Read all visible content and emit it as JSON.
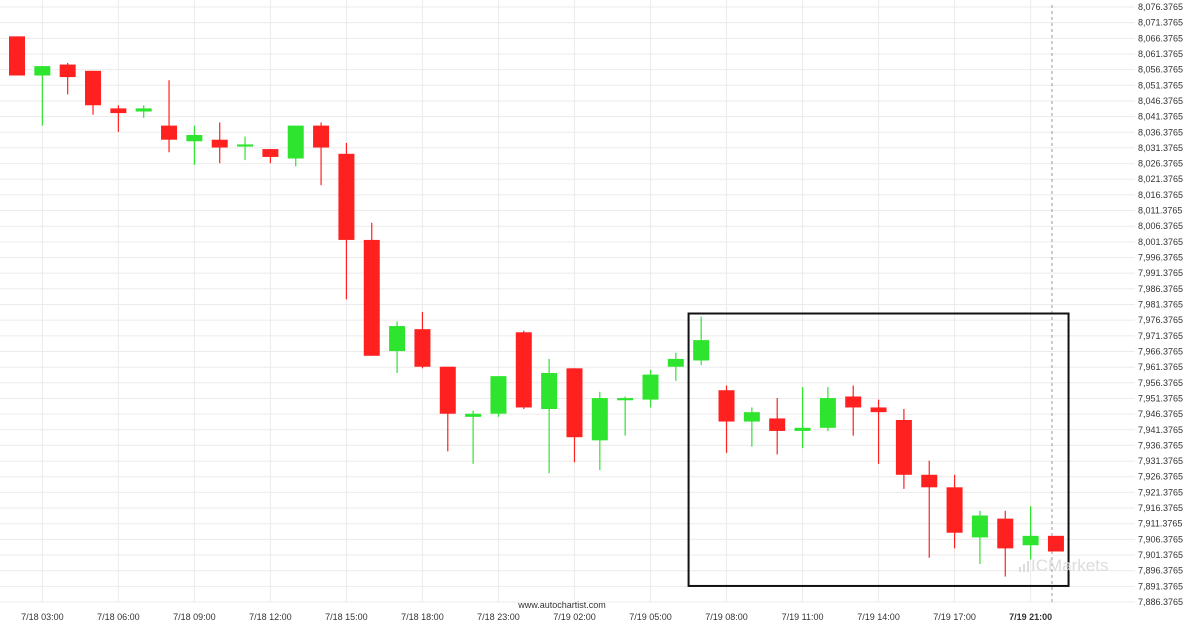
{
  "chart_data": {
    "type": "candlestick",
    "title": "",
    "xlabel": "",
    "ylabel": "",
    "ylim": [
      7884.3765,
      8078.3765
    ],
    "y_ticks": [
      "8,076.3765",
      "8,071.3765",
      "8,066.3765",
      "8,061.3765",
      "8,056.3765",
      "8,051.3765",
      "8,046.3765",
      "8,041.3765",
      "8,036.3765",
      "8,031.3765",
      "8,026.3765",
      "8,021.3765",
      "8,016.3765",
      "8,011.3765",
      "8,006.3765",
      "8,001.3765",
      "7,996.3765",
      "7,991.3765",
      "7,986.3765",
      "7,981.3765",
      "7,976.3765",
      "7,971.3765",
      "7,966.3765",
      "7,961.3765",
      "7,956.3765",
      "7,951.3765",
      "7,946.3765",
      "7,941.3765",
      "7,936.3765",
      "7,931.3765",
      "7,926.3765",
      "7,921.3765",
      "7,916.3765",
      "7,911.3765",
      "7,906.3765",
      "7,901.3765",
      "7,896.3765",
      "7,891.3765",
      "7,886.3765"
    ],
    "x_ticks": [
      {
        "label": "7/18 03:00",
        "candle": 1
      },
      {
        "label": "7/18 06:00",
        "candle": 4
      },
      {
        "label": "7/18 09:00",
        "candle": 7
      },
      {
        "label": "7/18 12:00",
        "candle": 10
      },
      {
        "label": "7/18 15:00",
        "candle": 13
      },
      {
        "label": "7/18 18:00",
        "candle": 16
      },
      {
        "label": "7/18 23:00",
        "candle": 19
      },
      {
        "label": "7/19 02:00",
        "candle": 22
      },
      {
        "label": "7/19 05:00",
        "candle": 25
      },
      {
        "label": "7/19 08:00",
        "candle": 28
      },
      {
        "label": "7/19 11:00",
        "candle": 31
      },
      {
        "label": "7/19 14:00",
        "candle": 34
      },
      {
        "label": "7/19 17:00",
        "candle": 37
      },
      {
        "label": "7/19 21:00",
        "candle": 40,
        "bold": true
      }
    ],
    "candles": [
      {
        "o": 8067.0,
        "h": 8067.0,
        "l": 8054.5,
        "c": 8054.5
      },
      {
        "o": 8054.5,
        "h": 8057.5,
        "l": 8038.5,
        "c": 8057.5
      },
      {
        "o": 8058.0,
        "h": 8058.5,
        "l": 8048.5,
        "c": 8054.0
      },
      {
        "o": 8056.0,
        "h": 8056.0,
        "l": 8042.0,
        "c": 8045.0
      },
      {
        "o": 8044.0,
        "h": 8045.0,
        "l": 8036.5,
        "c": 8042.5
      },
      {
        "o": 8043.0,
        "h": 8045.0,
        "l": 8041.0,
        "c": 8044.0
      },
      {
        "o": 8038.5,
        "h": 8053.0,
        "l": 8030.0,
        "c": 8034.0
      },
      {
        "o": 8033.5,
        "h": 8038.5,
        "l": 8026.0,
        "c": 8035.5
      },
      {
        "o": 8034.0,
        "h": 8039.5,
        "l": 8026.5,
        "c": 8031.5
      },
      {
        "o": 8032.0,
        "h": 8035.0,
        "l": 8027.5,
        "c": 8032.5
      },
      {
        "o": 8031.0,
        "h": 8031.0,
        "l": 8026.5,
        "c": 8028.5
      },
      {
        "o": 8028.0,
        "h": 8038.5,
        "l": 8025.5,
        "c": 8038.5
      },
      {
        "o": 8038.5,
        "h": 8039.5,
        "l": 8019.5,
        "c": 8031.5
      },
      {
        "o": 8029.5,
        "h": 8033.0,
        "l": 7983.0,
        "c": 8002.0
      },
      {
        "o": 8002.0,
        "h": 8007.5,
        "l": 7965.0,
        "c": 7965.0
      },
      {
        "o": 7966.5,
        "h": 7976.0,
        "l": 7959.5,
        "c": 7974.5
      },
      {
        "o": 7973.5,
        "h": 7979.0,
        "l": 7961.0,
        "c": 7961.5
      },
      {
        "o": 7961.5,
        "h": 7961.5,
        "l": 7934.5,
        "c": 7946.5
      },
      {
        "o": 7945.5,
        "h": 7947.5,
        "l": 7930.5,
        "c": 7946.5
      },
      {
        "o": 7946.5,
        "h": 7958.5,
        "l": 7945.5,
        "c": 7958.5
      },
      {
        "o": 7972.5,
        "h": 7973.0,
        "l": 7948.0,
        "c": 7948.5
      },
      {
        "o": 7948.0,
        "h": 7964.0,
        "l": 7927.5,
        "c": 7959.5
      },
      {
        "o": 7961.0,
        "h": 7961.0,
        "l": 7931.0,
        "c": 7939.0
      },
      {
        "o": 7938.0,
        "h": 7953.5,
        "l": 7928.5,
        "c": 7951.5
      },
      {
        "o": 7951.0,
        "h": 7952.0,
        "l": 7939.5,
        "c": 7951.5
      },
      {
        "o": 7951.0,
        "h": 7960.5,
        "l": 7948.5,
        "c": 7959.0
      },
      {
        "o": 7961.5,
        "h": 7966.0,
        "l": 7957.0,
        "c": 7964.0
      },
      {
        "o": 7963.5,
        "h": 7977.5,
        "l": 7962.0,
        "c": 7970.0
      },
      {
        "o": 7954.0,
        "h": 7955.5,
        "l": 7934.0,
        "c": 7944.0
      },
      {
        "o": 7944.0,
        "h": 7948.5,
        "l": 7936.0,
        "c": 7947.0
      },
      {
        "o": 7945.0,
        "h": 7951.5,
        "l": 7933.5,
        "c": 7941.0
      },
      {
        "o": 7941.0,
        "h": 7955.0,
        "l": 7935.5,
        "c": 7942.0
      },
      {
        "o": 7942.0,
        "h": 7955.0,
        "l": 7941.0,
        "c": 7951.5
      },
      {
        "o": 7952.0,
        "h": 7955.5,
        "l": 7939.5,
        "c": 7948.5
      },
      {
        "o": 7948.5,
        "h": 7951.0,
        "l": 7930.5,
        "c": 7947.0
      },
      {
        "o": 7944.5,
        "h": 7948.0,
        "l": 7922.5,
        "c": 7927.0
      },
      {
        "o": 7927.0,
        "h": 7931.5,
        "l": 7900.5,
        "c": 7923.0
      },
      {
        "o": 7923.0,
        "h": 7927.0,
        "l": 7903.5,
        "c": 7908.5
      },
      {
        "o": 7907.0,
        "h": 7915.5,
        "l": 7898.5,
        "c": 7914.0
      },
      {
        "o": 7913.0,
        "h": 7915.5,
        "l": 7894.5,
        "c": 7903.5
      },
      {
        "o": 7904.5,
        "h": 7917.0,
        "l": 7900.0,
        "c": 7907.5
      },
      {
        "o": 7907.5,
        "h": 7907.5,
        "l": 7902.5,
        "c": 7902.5
      }
    ],
    "highlight_range": {
      "from_candle": 27,
      "to_candle": 41,
      "high": 7978.5,
      "low": 7891.5
    },
    "current_time_marker_candle": 41,
    "colors": {
      "up": "#2fe42f",
      "down": "#ff2020",
      "grid": "#ebebeb",
      "box": "#111111",
      "marker": "#999999"
    }
  },
  "footer": {
    "source": "www.autochartist.com",
    "brand": "ICMarkets"
  }
}
